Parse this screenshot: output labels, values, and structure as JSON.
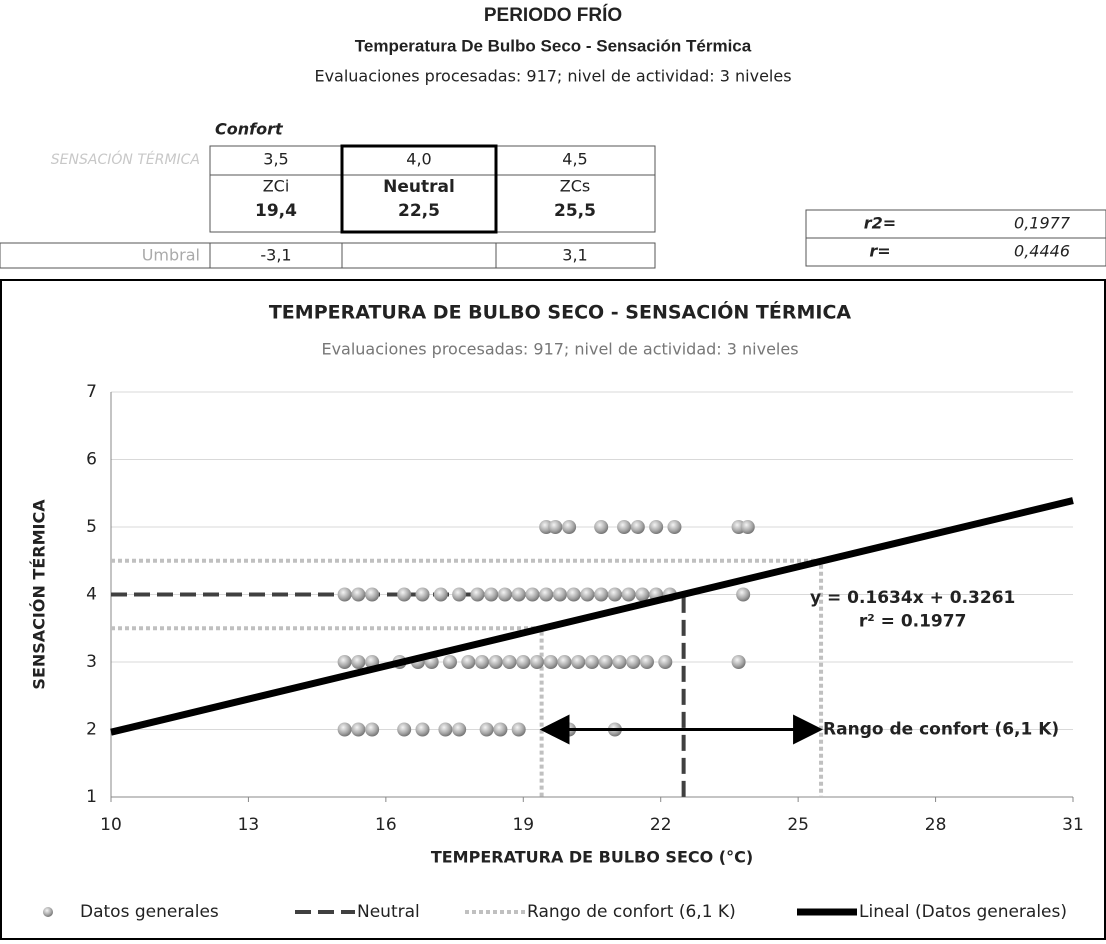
{
  "header": {
    "title": "PERIODO FRÍO",
    "subtitle": "Temperatura De Bulbo Seco - Sensación Térmica",
    "note": "Evaluaciones procesadas: 917; nivel de actividad: 3 niveles"
  },
  "table": {
    "caption": "Confort",
    "row_label": "SENSACIÓN TÉRMICA",
    "rows": [
      [
        "3,5",
        "4,0",
        "4,5"
      ],
      [
        "ZCi",
        "Neutral",
        "ZCs"
      ],
      [
        "19,4",
        "22,5",
        "25,5"
      ]
    ],
    "umbral": {
      "label": "Umbral",
      "low": "-3,1",
      "high": "3,1"
    }
  },
  "stats": [
    {
      "label": "r2=",
      "value": "0,1977"
    },
    {
      "label": "r=",
      "value": "0,4446"
    }
  ],
  "chart_data": {
    "type": "scatter",
    "title": "TEMPERATURA DE BULBO SECO - SENSACIÓN TÉRMICA",
    "subtitle": "Evaluaciones procesadas: 917; nivel de actividad: 3 niveles",
    "x_label": "TEMPERATURA DE BULBO SECO  (°C)",
    "y_label": "SENSACIÓN TÉRMICA",
    "xlim": [
      10,
      31
    ],
    "xticks": [
      10,
      13,
      16,
      19,
      22,
      25,
      28,
      31
    ],
    "ylim": [
      1,
      7
    ],
    "yticks": [
      1,
      2,
      3,
      4,
      5,
      6,
      7
    ],
    "grid": true,
    "series": [
      {
        "name": "Datos generales",
        "style": "markers",
        "color": "#9a9a9a",
        "x": [
          19.5,
          19.7,
          20.0,
          20.7,
          21.2,
          21.5,
          21.9,
          22.3,
          23.7,
          23.9,
          15.1,
          15.4,
          15.7,
          16.4,
          16.8,
          17.2,
          17.6,
          18.0,
          18.3,
          18.6,
          18.9,
          19.2,
          19.5,
          19.8,
          20.1,
          20.4,
          20.7,
          21.0,
          21.3,
          21.6,
          21.9,
          22.2,
          23.8,
          15.1,
          15.4,
          15.7,
          16.3,
          16.7,
          17.0,
          17.4,
          17.8,
          18.1,
          18.4,
          18.7,
          19.0,
          19.3,
          19.6,
          19.9,
          20.2,
          20.5,
          20.8,
          21.1,
          21.4,
          21.7,
          22.1,
          23.7,
          15.1,
          15.4,
          15.7,
          16.4,
          16.8,
          17.3,
          17.6,
          18.2,
          18.5,
          18.9,
          19.7,
          20.0,
          21.0
        ],
        "values": [
          5,
          5,
          5,
          5,
          5,
          5,
          5,
          5,
          5,
          5,
          4,
          4,
          4,
          4,
          4,
          4,
          4,
          4,
          4,
          4,
          4,
          4,
          4,
          4,
          4,
          4,
          4,
          4,
          4,
          4,
          4,
          4,
          4,
          3,
          3,
          3,
          3,
          3,
          3,
          3,
          3,
          3,
          3,
          3,
          3,
          3,
          3,
          3,
          3,
          3,
          3,
          3,
          3,
          3,
          3,
          3,
          2,
          2,
          2,
          2,
          2,
          2,
          2,
          2,
          2,
          2,
          2,
          2,
          2
        ]
      },
      {
        "name": "Neutral",
        "style": "dashed",
        "color": "#404040",
        "x": [
          10,
          22.5,
          22.5
        ],
        "values": [
          4,
          4,
          1
        ]
      },
      {
        "name": "Rango de confort (6,1 K)",
        "style": "dotted",
        "color": "#c0c0c0",
        "x": [
          10,
          25.5,
          25.5,
          null,
          10,
          19.4,
          19.4
        ],
        "values": [
          4.5,
          4.5,
          1,
          null,
          3.5,
          3.5,
          1
        ]
      },
      {
        "name": "Lineal (Datos generales)",
        "style": "solid",
        "color": "#000000",
        "x": [
          10,
          31
        ],
        "values": [
          1.9601,
          5.3915
        ]
      }
    ],
    "annotations": [
      {
        "text": "y = 0.1634x + 0.3261",
        "x": 27.5,
        "y": 3.95
      },
      {
        "text": "r² = 0.1977",
        "x": 27.5,
        "y": 3.6
      }
    ],
    "arrow": {
      "text": "Rango de confort (6,1 K)",
      "x": [
        19.4,
        25.5
      ],
      "y": 2
    }
  }
}
